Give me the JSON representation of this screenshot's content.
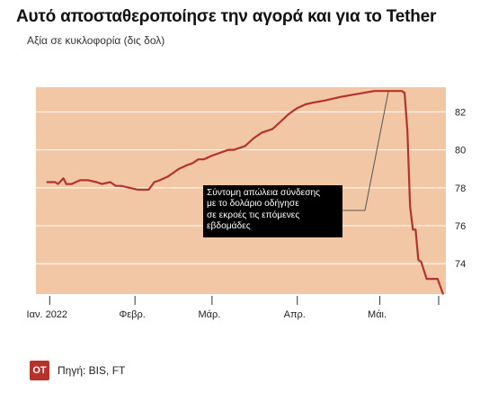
{
  "title": "Αυτό αποσταθεροποίησε την αγορά και για το Tether",
  "subtitle": "Αξία σε κυκλοφορία (δις δολ)",
  "annotation": {
    "lines": [
      "Σύντομη απώλεια σύνδεσης",
      "με το δολάριο οδήγησε",
      "σε εκροές τις επόμενες",
      "εβδομάδες"
    ]
  },
  "footer": {
    "logo": "OT",
    "source": "Πηγή: BIS, FT"
  },
  "colors": {
    "plot_background": "#f2c7a6",
    "line": "#b5332b",
    "grid": "#ffffff",
    "annotation_bg": "#000000",
    "annotation_leader": "#555555",
    "logo_bg": "#b5332b"
  },
  "chart_data": {
    "type": "line",
    "title": "Αυτό αποσταθεροποίησε την αγορά και για το Tether",
    "ylabel": "Αξία σε κυκλοφορία (δις δολ)",
    "ylim": [
      72.4,
      83.3
    ],
    "yticks": [
      74,
      76,
      78,
      80,
      82
    ],
    "ytick_labels": [
      "74",
      "76",
      "78",
      "80",
      "82"
    ],
    "y_axis_side": "right",
    "grid": "horizontal",
    "xlim": [
      "2021-12-27",
      "2022-05-25"
    ],
    "xticks": [
      "2022-01-01",
      "2022-02-01",
      "2022-03-01",
      "2022-04-01",
      "2022-05-01",
      "2022-05-31"
    ],
    "xtick_labels": [
      "Ιαν. 2022",
      "Φεβρ.",
      "Μάρ.",
      "Απρ.",
      "Μάι.",
      ""
    ],
    "series": [
      {
        "x": [
          "2021-12-31",
          "2022-01-03",
          "2022-01-04",
          "2022-01-06",
          "2022-01-07",
          "2022-01-09",
          "2022-01-12",
          "2022-01-15",
          "2022-01-18",
          "2022-01-20",
          "2022-01-23",
          "2022-01-25",
          "2022-01-27",
          "2022-01-30",
          "2022-02-02",
          "2022-02-06",
          "2022-02-08",
          "2022-02-10",
          "2022-02-13",
          "2022-02-15",
          "2022-02-17",
          "2022-02-20",
          "2022-02-22",
          "2022-02-24",
          "2022-02-26",
          "2022-03-01",
          "2022-03-03",
          "2022-03-05",
          "2022-03-07",
          "2022-03-09",
          "2022-03-13",
          "2022-03-16",
          "2022-03-19",
          "2022-03-23",
          "2022-03-26",
          "2022-03-29",
          "2022-04-01",
          "2022-04-04",
          "2022-04-07",
          "2022-04-11",
          "2022-04-14",
          "2022-04-17",
          "2022-04-21",
          "2022-04-25",
          "2022-04-29",
          "2022-05-03",
          "2022-05-06",
          "2022-05-08",
          "2022-05-09",
          "2022-05-10",
          "2022-05-11",
          "2022-05-12",
          "2022-05-13",
          "2022-05-14",
          "2022-05-15",
          "2022-05-16",
          "2022-05-18",
          "2022-05-20",
          "2022-05-22",
          "2022-05-24"
        ],
        "values": [
          78.3,
          78.3,
          78.2,
          78.5,
          78.2,
          78.2,
          78.4,
          78.4,
          78.3,
          78.2,
          78.3,
          78.1,
          78.1,
          78.0,
          77.9,
          77.9,
          78.3,
          78.4,
          78.6,
          78.8,
          79.0,
          79.2,
          79.3,
          79.5,
          79.5,
          79.7,
          79.8,
          79.9,
          80.0,
          80.0,
          80.2,
          80.6,
          80.9,
          81.1,
          81.5,
          81.9,
          82.2,
          82.4,
          82.5,
          82.6,
          82.7,
          82.8,
          82.9,
          83.0,
          83.1,
          83.1,
          83.1,
          83.1,
          83.1,
          83.0,
          81.0,
          77.0,
          75.8,
          75.8,
          74.2,
          74.1,
          73.2,
          73.2,
          73.2,
          72.4
        ]
      }
    ]
  }
}
